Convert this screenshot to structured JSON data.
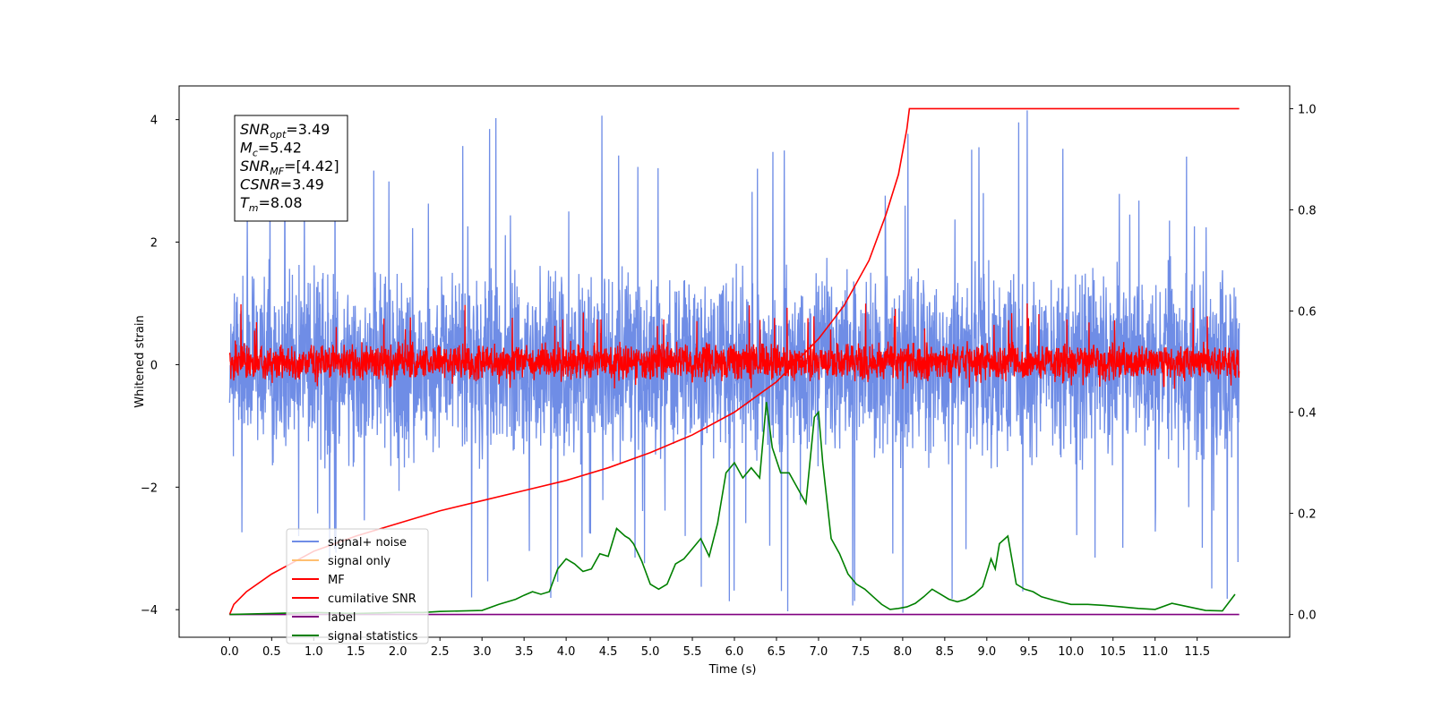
{
  "chart_data": {
    "type": "line",
    "xlabel": "Time (s)",
    "ylabel_left": "Whitened strain",
    "ylabel_right": "",
    "xlim": [
      -0.6,
      12.6
    ],
    "ylim_left": [
      -4.45,
      4.55
    ],
    "ylim_right": [
      -0.045,
      1.045
    ],
    "x_ticks": [
      "0.0",
      "0.5",
      "1.0",
      "1.5",
      "2.0",
      "2.5",
      "3.0",
      "3.5",
      "4.0",
      "4.5",
      "5.0",
      "5.5",
      "6.0",
      "6.5",
      "7.0",
      "7.5",
      "8.0",
      "8.5",
      "9.0",
      "9.5",
      "10.0",
      "10.5",
      "11.0",
      "11.5"
    ],
    "y_ticks_left": [
      "4",
      "2",
      "0",
      "−2",
      "−4"
    ],
    "y_ticks_right": [
      "1.0",
      "0.8",
      "0.6",
      "0.4",
      "0.2",
      "0.0"
    ],
    "grid": false,
    "legend_position": "lower left",
    "legend": [
      {
        "label": "signal+ noise",
        "color": "#6f8de6"
      },
      {
        "label": "signal only",
        "color": "#ffbf70"
      },
      {
        "label": "MF",
        "color": "#ff0000"
      },
      {
        "label": "cumilative SNR",
        "color": "#ff0000"
      },
      {
        "label": "label",
        "color": "#800080"
      },
      {
        "label": "signal statistics",
        "color": "#008000"
      }
    ],
    "annotation_lines": [
      {
        "main": "SNR",
        "sub": "opt",
        "value": "=3.49"
      },
      {
        "main": "M",
        "sub": "c",
        "value": "=5.42"
      },
      {
        "main": "SNR",
        "sub": "MF",
        "value": "=[4.42]"
      },
      {
        "main": "CSNR",
        "sub": "",
        "value": "=3.49"
      },
      {
        "main": "T",
        "sub": "m",
        "value": "=8.08"
      }
    ],
    "series": [
      {
        "name": "signal+ noise",
        "axis": "left",
        "kind": "noise",
        "x_range": [
          0.0,
          12.0
        ],
        "envelope": [
          -1.8,
          1.8
        ],
        "peak_max": 4.15,
        "peak_min": -4.05,
        "color": "#6f8de6"
      },
      {
        "name": "MF",
        "axis": "left",
        "kind": "noise",
        "x_range": [
          0.0,
          12.0
        ],
        "envelope": [
          -0.3,
          0.4
        ],
        "peak_max": 1.0,
        "peak_min": -0.4,
        "color": "#ff0000"
      },
      {
        "name": "cumilative SNR",
        "axis": "right",
        "kind": "line",
        "color": "#ff0000",
        "x": [
          0.0,
          0.05,
          0.2,
          0.5,
          1.0,
          1.5,
          2.0,
          2.5,
          3.0,
          3.5,
          4.0,
          4.5,
          5.0,
          5.5,
          6.0,
          6.5,
          7.0,
          7.3,
          7.6,
          7.8,
          7.95,
          8.05,
          8.08,
          12.0
        ],
        "y": [
          0.0,
          0.02,
          0.045,
          0.08,
          0.125,
          0.155,
          0.18,
          0.205,
          0.225,
          0.245,
          0.265,
          0.29,
          0.32,
          0.355,
          0.4,
          0.46,
          0.545,
          0.61,
          0.7,
          0.79,
          0.87,
          0.96,
          1.0,
          1.0
        ]
      },
      {
        "name": "label",
        "axis": "right",
        "kind": "line",
        "color": "#800080",
        "x": [
          0.0,
          12.0
        ],
        "y": [
          0.0,
          0.0
        ]
      },
      {
        "name": "signal statistics",
        "axis": "right",
        "kind": "line",
        "color": "#008000",
        "x": [
          0.0,
          0.5,
          1.0,
          1.5,
          2.0,
          2.3,
          2.5,
          3.0,
          3.2,
          3.4,
          3.5,
          3.6,
          3.7,
          3.8,
          3.9,
          4.0,
          4.1,
          4.2,
          4.3,
          4.4,
          4.5,
          4.6,
          4.7,
          4.75,
          4.8,
          4.9,
          5.0,
          5.1,
          5.2,
          5.3,
          5.4,
          5.5,
          5.6,
          5.7,
          5.8,
          5.9,
          6.0,
          6.1,
          6.2,
          6.3,
          6.38,
          6.45,
          6.55,
          6.65,
          6.75,
          6.85,
          6.95,
          7.0,
          7.05,
          7.15,
          7.25,
          7.35,
          7.45,
          7.55,
          7.65,
          7.75,
          7.85,
          7.95,
          8.05,
          8.15,
          8.25,
          8.35,
          8.45,
          8.55,
          8.65,
          8.75,
          8.85,
          8.95,
          9.05,
          9.1,
          9.15,
          9.25,
          9.35,
          9.45,
          9.55,
          9.65,
          9.8,
          10.0,
          10.2,
          10.4,
          10.6,
          10.8,
          11.0,
          11.2,
          11.4,
          11.6,
          11.8,
          11.95
        ],
        "y": [
          0.0,
          0.002,
          0.004,
          0.002,
          0.004,
          0.004,
          0.006,
          0.008,
          0.02,
          0.03,
          0.038,
          0.045,
          0.04,
          0.045,
          0.09,
          0.11,
          0.1,
          0.085,
          0.09,
          0.12,
          0.115,
          0.17,
          0.155,
          0.15,
          0.14,
          0.105,
          0.06,
          0.05,
          0.06,
          0.1,
          0.11,
          0.13,
          0.15,
          0.115,
          0.18,
          0.28,
          0.3,
          0.27,
          0.29,
          0.27,
          0.42,
          0.33,
          0.28,
          0.28,
          0.25,
          0.22,
          0.39,
          0.4,
          0.3,
          0.15,
          0.12,
          0.08,
          0.06,
          0.05,
          0.035,
          0.02,
          0.01,
          0.012,
          0.015,
          0.022,
          0.035,
          0.05,
          0.04,
          0.03,
          0.025,
          0.03,
          0.04,
          0.055,
          0.11,
          0.09,
          0.14,
          0.155,
          0.06,
          0.05,
          0.045,
          0.035,
          0.028,
          0.02,
          0.02,
          0.018,
          0.015,
          0.012,
          0.01,
          0.022,
          0.015,
          0.008,
          0.007,
          0.04
        ]
      }
    ]
  }
}
